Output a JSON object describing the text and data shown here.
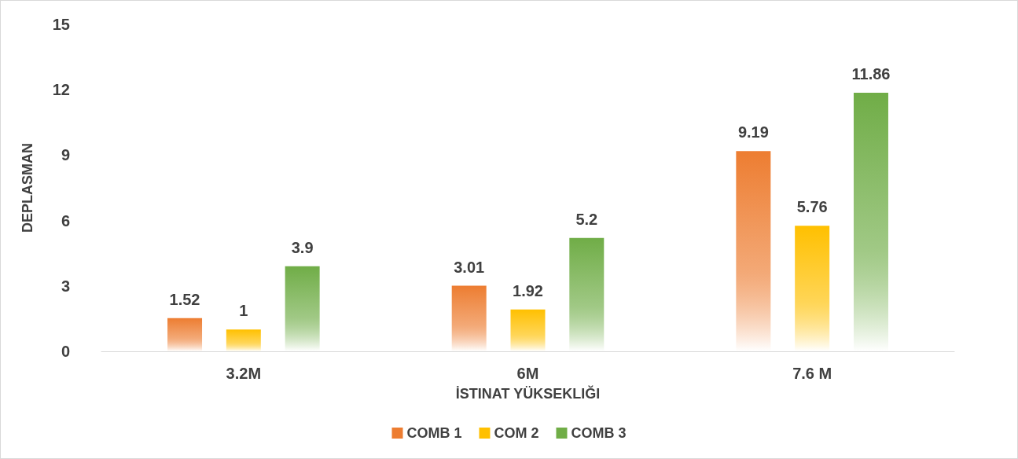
{
  "chart_data": {
    "type": "bar",
    "xlabel": "İSTINAT YÜKSEKLIĞI",
    "ylabel": "DEPLASMAN",
    "categories": [
      "3.2M",
      "6M",
      "7.6 M"
    ],
    "series": [
      {
        "name": "COMB 1",
        "color": "#ed7d31",
        "values": [
          1.52,
          3.01,
          9.19
        ]
      },
      {
        "name": "COM 2",
        "color": "#ffc000",
        "values": [
          1,
          1.92,
          5.76
        ]
      },
      {
        "name": "COMB 3",
        "color": "#70ad47",
        "values": [
          3.9,
          5.2,
          11.86
        ]
      }
    ],
    "ylim": [
      0,
      15
    ],
    "yticks": [
      0,
      3,
      6,
      9,
      12,
      15
    ],
    "grid": false,
    "legend": "bottom",
    "data_labels": true
  }
}
